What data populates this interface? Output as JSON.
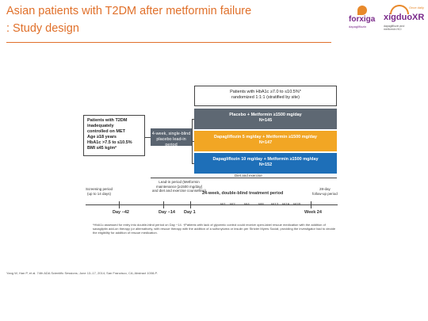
{
  "header": {
    "title_line1": "Asian patients with T2DM after metformin failure",
    "title_line2": ": Study design"
  },
  "logos": {
    "forxiga": {
      "name": "forxiga",
      "sub": "dapagliflozin"
    },
    "xigduo": {
      "tag": "Once daily",
      "name": "xigduoXR",
      "sub1": "dapagliflozin and",
      "sub2": "metformin HCl"
    }
  },
  "diagram": {
    "eligibility": {
      "line1": "Patients with HbA1c ≥7.0 to ≤10.5%*",
      "line2": "randomized 1:1:1 (stratified by site)"
    },
    "inclusion": {
      "lines": [
        "Patients with T2DM",
        "inadequately",
        "controlled on MET",
        "Age ≥18 years",
        "HbA1c >7.5 to ≤10.5%",
        "BMI ≤45 kg/m²"
      ]
    },
    "lead_in": {
      "line1": "4-week, single-blind",
      "line2": "placebo lead-in period"
    },
    "arms": [
      {
        "line1": "Placebo + Metformin ≥1500 mg/day",
        "line2": "N=145"
      },
      {
        "line1": "Dapagliflozin 5 mg/day + Metformin ≥1500 mg/day",
        "line2": "N=147"
      },
      {
        "line1": "Dapagliflozin 10 mg/day + Metformin ≥1500 mg/day",
        "line2": "N=152"
      }
    ],
    "diet_exercise": "Diet and exercise",
    "lead_in_label": {
      "line1": "Lead-in period (Metformin",
      "line2": "maintenance [≥1500 mg/day]",
      "line3": "and diet and exercise counselling)"
    },
    "screening": {
      "line1": "Screening period",
      "line2": "(up to 14 days)"
    },
    "treatment_period": "24-week, double-blind treatment period",
    "followup": {
      "line1": "28-day",
      "line2": "follow-up period"
    },
    "timepoints": {
      "day_minus42": "Day −42",
      "day_minus14": "Day −14",
      "day_1": "Day 1",
      "week_24": "Week 24"
    },
    "weeks": [
      "W1",
      "W2",
      "W4",
      "W8",
      "W12",
      "W16",
      "W20"
    ],
    "footnote": "*HbA1c assessed for entry into double-blind period on Day −14. †Patients with lack of glycemic control could receive open-label rescue medication with the addition of saxagliptin add-on therapy (or alternatively, with rescue therapy with the addition of a sulfonylurea or insulin per Stricter Myers Social; providing the investigator had to decide the eligibility for addition of rescue medication."
  },
  "reference": "Yang W, Han P, et al. 74th ADA Scientific Sessions; June 13–17, 2014; San Francisco, CA; Abstract 1008-P."
}
